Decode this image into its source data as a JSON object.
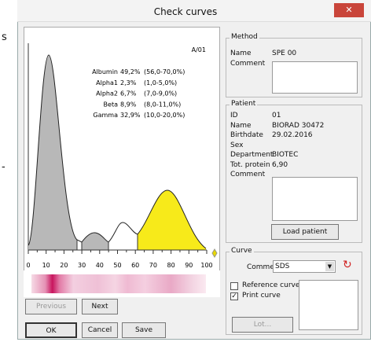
{
  "background_fragments": [
    "s",
    "-"
  ],
  "window": {
    "title": "Check curves"
  },
  "graph": {
    "sample_id": "A/01",
    "fractions": [
      {
        "name": "Albumin",
        "value": "49,2%",
        "range": "(56,0-70,0%)"
      },
      {
        "name": "Alpha1",
        "value": "2,3%",
        "range": "(1,0-5,0%)"
      },
      {
        "name": "Alpha2",
        "value": "6,7%",
        "range": "(7,0-9,0%)"
      },
      {
        "name": "Beta",
        "value": "8,9%",
        "range": "(8,0-11,0%)"
      },
      {
        "name": "Gamma",
        "value": "32,9%",
        "range": "(10,0-20,0%)"
      }
    ],
    "x_ticks": [
      "0",
      "10",
      "20",
      "30",
      "40",
      "50",
      "60",
      "70",
      "80",
      "90",
      "100"
    ]
  },
  "buttons": {
    "previous": "Previous",
    "next": "Next",
    "ok": "OK",
    "cancel": "Cancel",
    "save": "Save"
  },
  "method": {
    "title": "Method",
    "name_label": "Name",
    "name_value": "SPE 00",
    "comment_label": "Comment"
  },
  "patient": {
    "title": "Patient",
    "fields": [
      {
        "label": "ID",
        "value": "01"
      },
      {
        "label": "Name",
        "value": "BIORAD 30472"
      },
      {
        "label": "Birthdate",
        "value": "29.02.2016"
      },
      {
        "label": "Sex"
      },
      {
        "label": "Department",
        "value": "BIOTEC"
      },
      {
        "label": "Tot. protein",
        "value": "6,90"
      },
      {
        "label": "Comment"
      }
    ],
    "load_button": "Load patient"
  },
  "curve": {
    "title": "Curve",
    "comment_label": "Comment",
    "comment_value": "SDS",
    "checkboxes": [
      {
        "label": "Reference curve",
        "checked": false
      },
      {
        "label": "Print curve",
        "checked": true
      }
    ],
    "lot_button": "Lot..."
  }
}
